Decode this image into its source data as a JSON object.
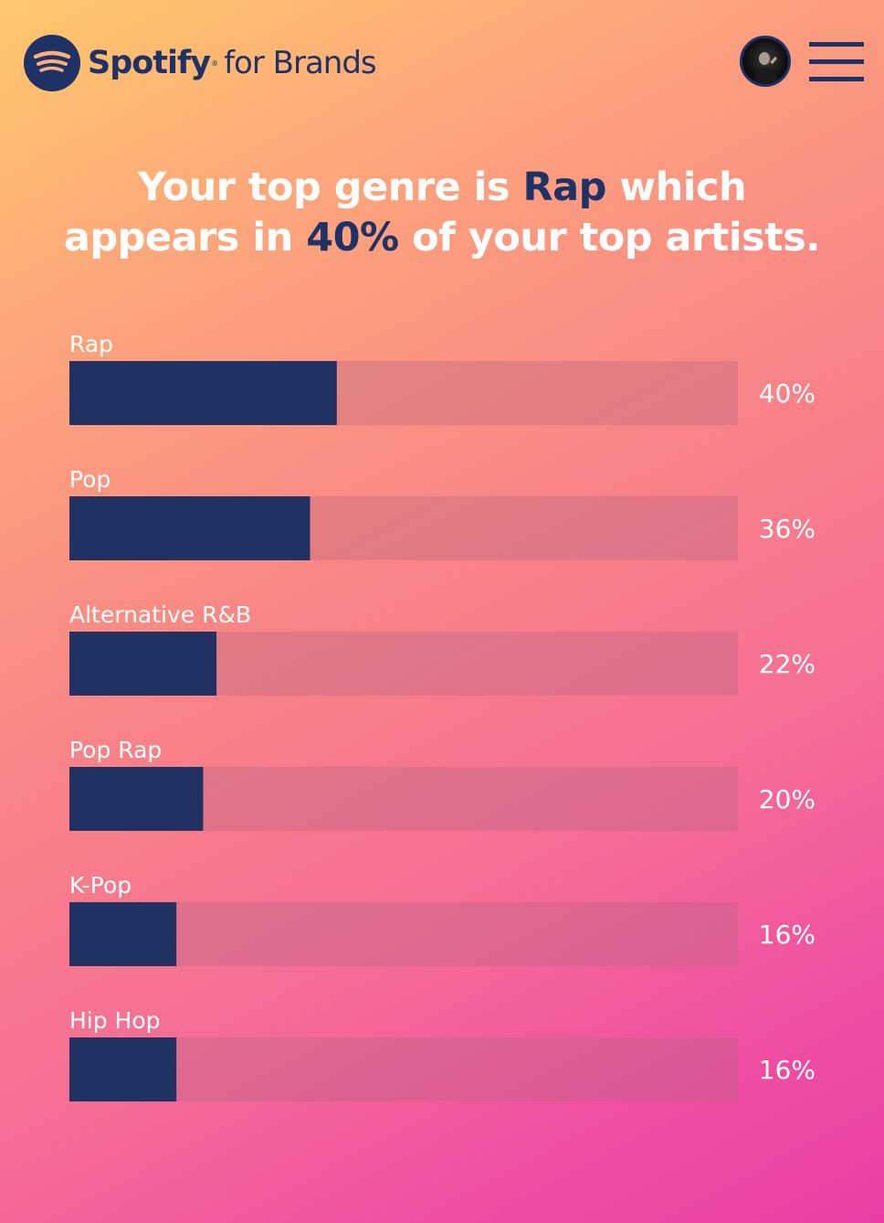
{
  "header": {
    "brand_name": "Spotify",
    "brand_suffix": "for Brands",
    "brand_color": "#1f3266",
    "avatar_icon": "user-avatar",
    "menu_icon": "hamburger-menu-icon"
  },
  "headline": {
    "part1": "Your top genre is ",
    "genre": "Rap",
    "part2": " which",
    "part3": "appears in ",
    "percent": "40%",
    "part4": " of your top artists."
  },
  "chart_data": {
    "type": "bar",
    "orientation": "horizontal",
    "categories": [
      "Rap",
      "Pop",
      "Alternative R&B",
      "Pop Rap",
      "K-Pop",
      "Hip Hop"
    ],
    "values": [
      40,
      36,
      22,
      20,
      16,
      16
    ],
    "value_labels": [
      "40%",
      "36%",
      "22%",
      "20%",
      "16%",
      "16%"
    ],
    "xlim": [
      0,
      100
    ],
    "bar_color": "#213262",
    "track_color": "rgba(180,100,130,0.35)",
    "grid": false,
    "legend": "none"
  }
}
